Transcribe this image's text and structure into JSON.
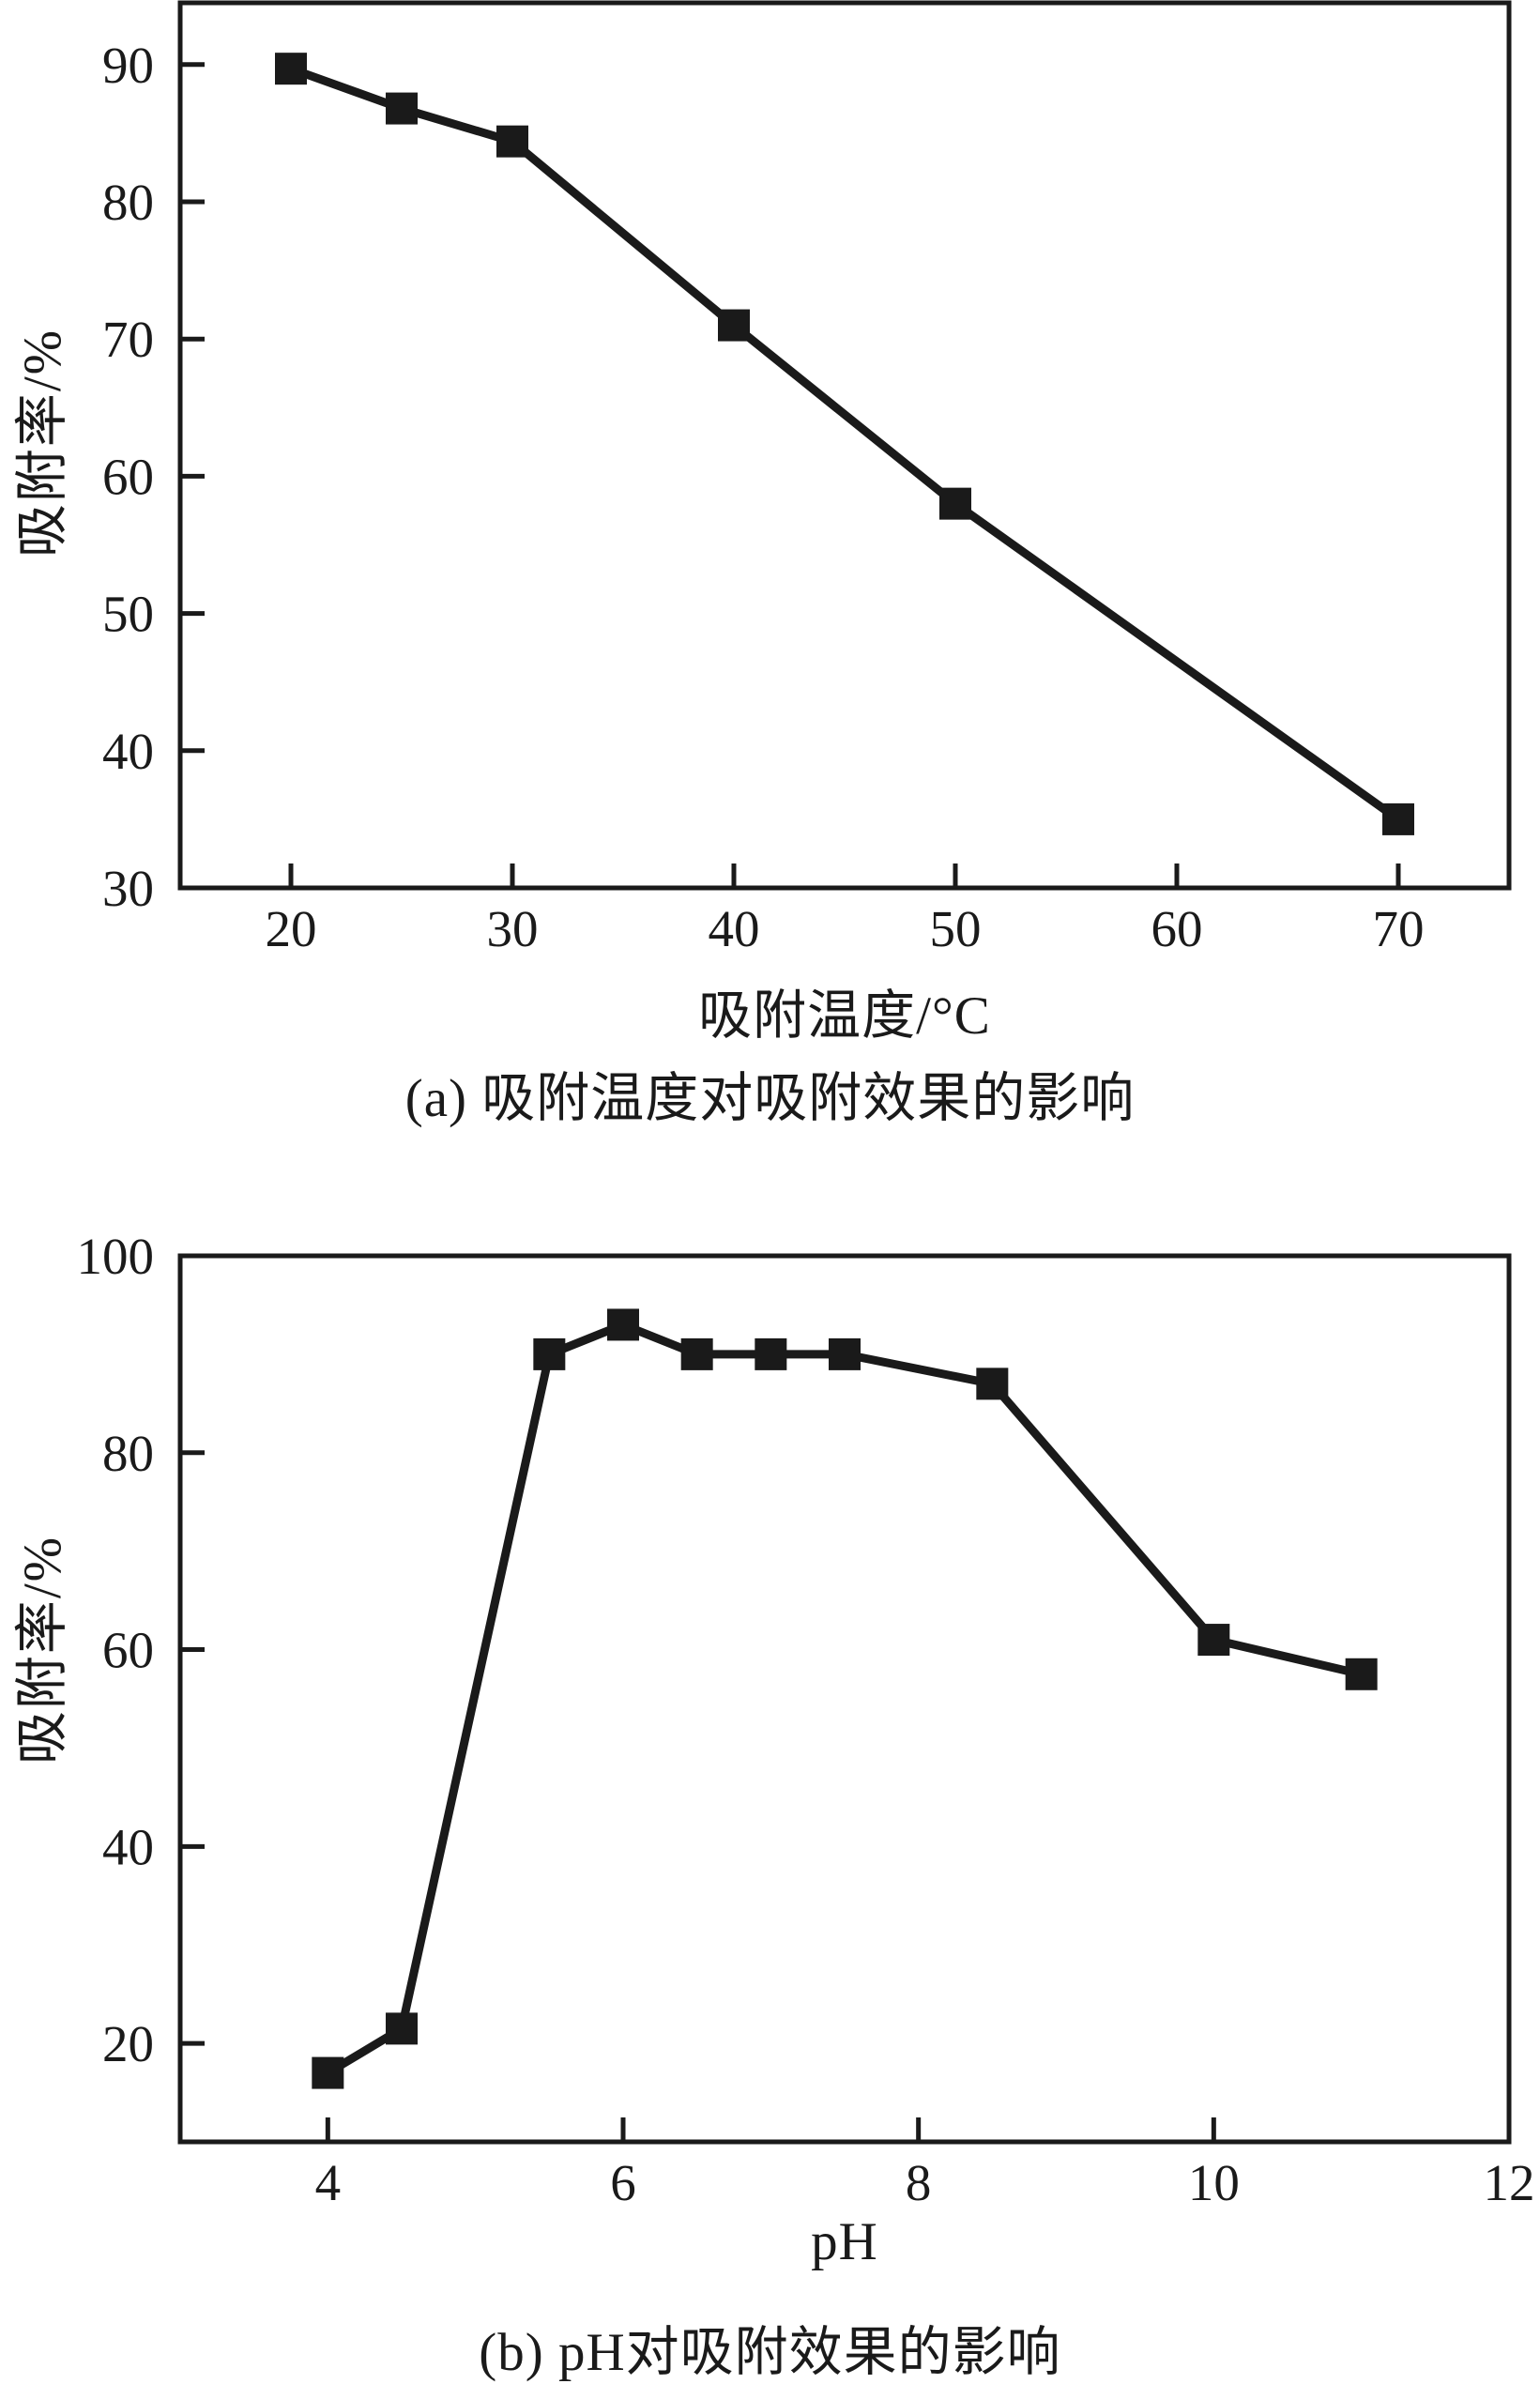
{
  "page": {
    "background": "#ffffff",
    "ink_color": "#1a1a1a"
  },
  "chart_data": [
    {
      "id": "a",
      "type": "line",
      "title": "(a) 吸附温度对吸附效果的影响",
      "xlabel": "吸附温度/°C",
      "ylabel": "吸附率/%",
      "x": [
        20,
        25,
        30,
        40,
        50,
        70
      ],
      "y": [
        89.7,
        86.8,
        84.4,
        71,
        58,
        35
      ],
      "xlim": [
        15,
        75
      ],
      "ylim": [
        30,
        94.5
      ],
      "xticks": [
        20,
        30,
        40,
        50,
        60,
        70
      ],
      "yticks": [
        30,
        40,
        50,
        60,
        70,
        80,
        90
      ],
      "marker": "square",
      "line_color": "#1a1a1a",
      "legend": "none",
      "grid": false
    },
    {
      "id": "b",
      "type": "line",
      "title": "(b) pH对吸附效果的影响",
      "xlabel": "pH",
      "ylabel": "吸附率/%",
      "x": [
        4,
        4.5,
        5.5,
        6,
        6.5,
        7,
        7.5,
        8.5,
        10,
        11
      ],
      "y": [
        17,
        21.5,
        90,
        93,
        90,
        90,
        90,
        87,
        61,
        57.5
      ],
      "xlim": [
        3,
        12
      ],
      "ylim": [
        10,
        100
      ],
      "xticks": [
        4,
        6,
        8,
        10,
        12
      ],
      "yticks": [
        20,
        40,
        60,
        80,
        100
      ],
      "marker": "square",
      "line_color": "#1a1a1a",
      "legend": "none",
      "grid": false
    }
  ]
}
